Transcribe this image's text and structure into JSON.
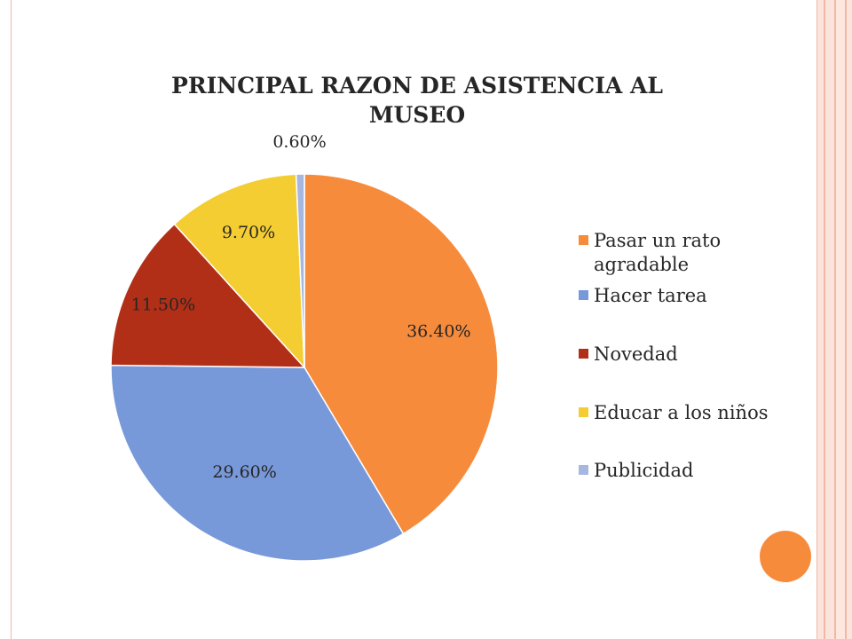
{
  "chart_data": {
    "type": "pie",
    "title": "PRINCIPAL RAZON DE ASISTENCIA AL MUSEO",
    "categories": [
      "Pasar un rato agradable",
      "Hacer  tarea",
      "Novedad",
      "Educar a los niños",
      "Publicidad"
    ],
    "values": [
      36.4,
      29.6,
      11.5,
      9.7,
      0.6
    ],
    "data_labels": [
      "36.40%",
      "29.60%",
      "11.50%",
      "9.70%",
      "0.60%"
    ],
    "colors": [
      "#f78b3c",
      "#7899d9",
      "#b22f17",
      "#f4cd33",
      "#a6b8e0"
    ],
    "legend_position": "right",
    "start": "top",
    "direction": "clockwise"
  },
  "decor": {
    "frame_color": "#f2b8a6",
    "accent_dot_color": "#f78b3c"
  }
}
